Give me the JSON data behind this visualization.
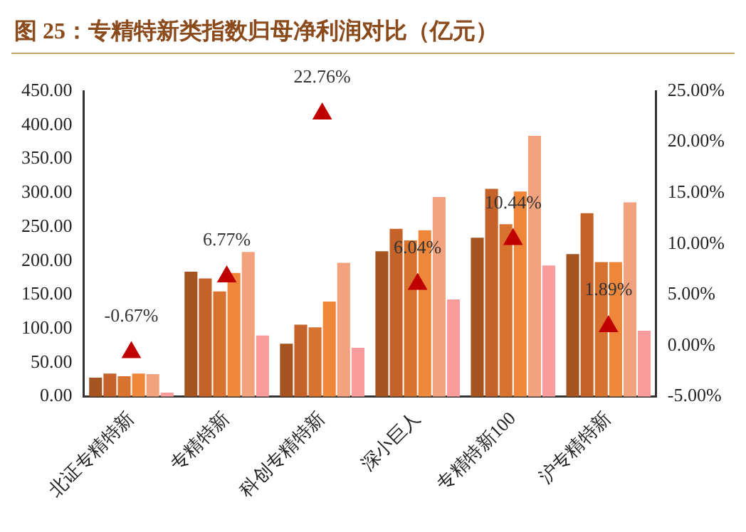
{
  "chart_data": {
    "type": "bar",
    "title": "图 25：专精特新类指数归母净利润对比（亿元）",
    "categories": [
      "北证专精特新",
      "专精特新",
      "科创专精特新",
      "深小巨人",
      "专精特新100",
      "沪专精特新"
    ],
    "series": [
      {
        "color": "#a5531f",
        "values": [
          28,
          184,
          78,
          214,
          234,
          210
        ]
      },
      {
        "color": "#c4622a",
        "values": [
          34,
          174,
          106,
          247,
          306,
          270
        ]
      },
      {
        "color": "#d8722f",
        "values": [
          30,
          155,
          102,
          230,
          254,
          198
        ]
      },
      {
        "color": "#ee873a",
        "values": [
          34,
          182,
          140,
          245,
          302,
          198
        ]
      },
      {
        "color": "#f2a27c",
        "values": [
          33,
          213,
          197,
          294,
          384,
          286
        ]
      },
      {
        "color": "#fb9c9c",
        "values": [
          6,
          90,
          72,
          143,
          193,
          97
        ]
      },
      {
        "type": "scatter",
        "axis": "y2",
        "color": "#c00000",
        "marker": "triangle",
        "values": [
          -0.67,
          6.77,
          22.76,
          6.04,
          10.44,
          1.89
        ],
        "value_labels": [
          "-0.67%",
          "6.77%",
          "22.76%",
          "6.04%",
          "10.44%",
          "1.89%"
        ]
      }
    ],
    "ylim": [
      0,
      450
    ],
    "yticks": [
      {
        "value": 0,
        "label": "0.00"
      },
      {
        "value": 50,
        "label": "50.00"
      },
      {
        "value": 100,
        "label": "100.00"
      },
      {
        "value": 150,
        "label": "150.00"
      },
      {
        "value": 200,
        "label": "200.00"
      },
      {
        "value": 250,
        "label": "250.00"
      },
      {
        "value": 300,
        "label": "300.00"
      },
      {
        "value": 350,
        "label": "350.00"
      },
      {
        "value": 400,
        "label": "400.00"
      },
      {
        "value": 450,
        "label": "450.00"
      }
    ],
    "y2lim": [
      -5,
      25
    ],
    "y2ticks": [
      {
        "value": -5,
        "label": "-5.00%"
      },
      {
        "value": 0,
        "label": "0.00%"
      },
      {
        "value": 5,
        "label": "5.00%"
      },
      {
        "value": 10,
        "label": "10.00%"
      },
      {
        "value": 15,
        "label": "15.00%"
      },
      {
        "value": 20,
        "label": "20.00%"
      },
      {
        "value": 25,
        "label": "25.00%"
      }
    ],
    "grid": false,
    "legend": false
  }
}
